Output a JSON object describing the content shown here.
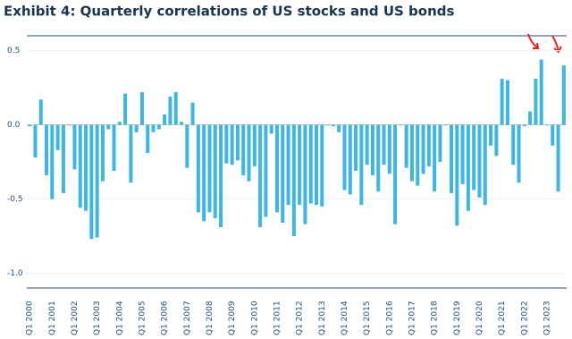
{
  "chart_data": {
    "type": "bar",
    "title": "Exhibit 4: Quarterly correlations of US stocks and US bonds",
    "categories": [
      "Q1 2000",
      null,
      null,
      null,
      "Q1 2001",
      null,
      null,
      null,
      "Q1 2002",
      null,
      null,
      null,
      "Q1 2003",
      null,
      null,
      null,
      "Q1 2004",
      null,
      null,
      null,
      "Q1 2005",
      null,
      null,
      null,
      "Q1 2006",
      null,
      null,
      null,
      "Q1 2007",
      null,
      null,
      null,
      "Q1 2008",
      null,
      null,
      null,
      "Q1 2009",
      null,
      null,
      null,
      "Q1 2010",
      null,
      null,
      null,
      "Q1 2011",
      null,
      null,
      null,
      "Q1 2012",
      null,
      null,
      null,
      "Q1 2013",
      null,
      null,
      null,
      "Q1 2014",
      null,
      null,
      null,
      "Q1 2015",
      null,
      null,
      null,
      "Q1 2016",
      null,
      null,
      null,
      "Q1 2017",
      null,
      null,
      null,
      "Q1 2018",
      null,
      null,
      null,
      "Q1 2019",
      null,
      null,
      null,
      "Q1 2020",
      null,
      null,
      null,
      "Q1 2021",
      null,
      null,
      null,
      "Q1 2022",
      null,
      null,
      null,
      "Q1 2023",
      null,
      null,
      null
    ],
    "values": [
      -0.01,
      -0.22,
      0.17,
      -0.34,
      -0.5,
      -0.17,
      -0.46,
      0.0,
      -0.3,
      -0.56,
      -0.58,
      -0.77,
      -0.76,
      -0.38,
      -0.03,
      -0.31,
      0.02,
      0.21,
      -0.39,
      -0.05,
      0.22,
      -0.19,
      -0.05,
      -0.03,
      0.07,
      0.19,
      0.22,
      0.02,
      -0.29,
      0.15,
      -0.59,
      -0.65,
      -0.59,
      -0.63,
      -0.69,
      -0.26,
      -0.27,
      -0.24,
      -0.34,
      -0.38,
      -0.28,
      -0.69,
      -0.62,
      -0.06,
      -0.59,
      -0.66,
      -0.54,
      -0.75,
      -0.54,
      -0.67,
      -0.53,
      -0.54,
      -0.55,
      0.0,
      -0.01,
      -0.05,
      -0.44,
      -0.47,
      -0.31,
      -0.54,
      -0.27,
      -0.34,
      -0.45,
      -0.27,
      -0.33,
      -0.67,
      0.0,
      -0.29,
      -0.38,
      -0.41,
      -0.33,
      -0.28,
      -0.45,
      -0.25,
      0.0,
      -0.46,
      -0.68,
      -0.4,
      -0.58,
      -0.44,
      -0.49,
      -0.54,
      -0.14,
      -0.21,
      0.31,
      0.3,
      -0.27,
      -0.39,
      -0.01,
      0.09,
      0.31,
      0.44,
      0.0,
      -0.14,
      -0.45,
      0.4
    ],
    "color": "#3db6e1",
    "ylim": [
      -1.1,
      0.6
    ],
    "yticks": [
      0.5,
      {
        "value": 0.0,
        "label": "0.0"
      },
      -0.5,
      {
        "value": -1.0,
        "label": "-1.0"
      }
    ],
    "grid": true
  }
}
